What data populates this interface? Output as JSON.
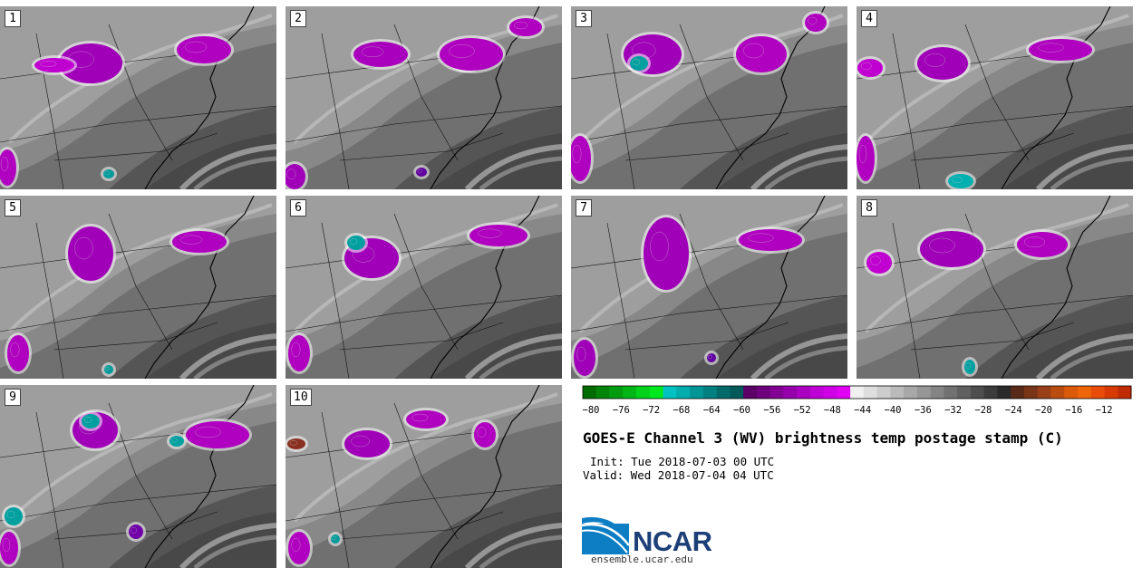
{
  "title": "GOES-E Channel 3 (WV) brightness temp postage stamp (C)",
  "init_label": "Init: Tue 2018-07-03 00 UTC",
  "valid_label": "Valid: Wed 2018-07-04 04 UTC",
  "logo": {
    "text": "NCAR",
    "website": "ensemble.ucar.edu"
  },
  "panels": [
    {
      "number": "1",
      "blobs": [
        [
          100,
          70,
          35,
          22,
          "#a000b8"
        ],
        [
          225,
          55,
          30,
          15,
          "#b000c0"
        ],
        [
          60,
          72,
          22,
          8,
          "#c000d0"
        ],
        [
          120,
          192,
          6,
          5,
          "#009a9a"
        ],
        [
          8,
          185,
          10,
          20,
          "#b000c0"
        ]
      ]
    },
    {
      "number": "2",
      "blobs": [
        [
          420,
          60,
          30,
          14,
          "#a800bc"
        ],
        [
          515,
          65,
          18,
          12,
          "#00a0a0"
        ],
        [
          520,
          60,
          35,
          18,
          "#b000c0"
        ],
        [
          580,
          30,
          18,
          10,
          "#b000c0"
        ],
        [
          325,
          195,
          12,
          14,
          "#a000b8"
        ],
        [
          465,
          190,
          6,
          5,
          "#6000a0"
        ]
      ]
    },
    {
      "number": "3",
      "blobs": [
        [
          720,
          60,
          32,
          22,
          "#a000b8"
        ],
        [
          840,
          60,
          28,
          20,
          "#b000c0"
        ],
        [
          705,
          70,
          10,
          8,
          "#00a0a0"
        ],
        [
          640,
          175,
          12,
          25,
          "#b000c0"
        ],
        [
          900,
          25,
          12,
          10,
          "#b000c0"
        ]
      ]
    },
    {
      "number": "4",
      "blobs": [
        [
          1040,
          70,
          28,
          18,
          "#a000b8"
        ],
        [
          1170,
          55,
          35,
          12,
          "#b000c0"
        ],
        [
          960,
          75,
          14,
          10,
          "#c000d0"
        ],
        [
          1060,
          200,
          14,
          8,
          "#00b0b0"
        ],
        [
          955,
          175,
          10,
          25,
          "#b000c0"
        ]
      ]
    },
    {
      "number": "5",
      "blobs": [
        [
          100,
          280,
          25,
          30,
          "#a000b8"
        ],
        [
          220,
          267,
          30,
          12,
          "#b000c0"
        ],
        [
          20,
          390,
          12,
          20,
          "#b000c0"
        ],
        [
          120,
          408,
          5,
          5,
          "#009a9a"
        ]
      ]
    },
    {
      "number": "6",
      "blobs": [
        [
          410,
          285,
          30,
          22,
          "#a000b8"
        ],
        [
          393,
          268,
          10,
          8,
          "#00a0a0"
        ],
        [
          550,
          260,
          32,
          12,
          "#b000c0"
        ],
        [
          330,
          390,
          12,
          20,
          "#b000c0"
        ]
      ]
    },
    {
      "number": "7",
      "blobs": [
        [
          735,
          280,
          25,
          40,
          "#a000b8"
        ],
        [
          850,
          265,
          35,
          12,
          "#b000c0"
        ],
        [
          645,
          395,
          12,
          20,
          "#a000b8"
        ],
        [
          785,
          395,
          5,
          5,
          "#6000a0"
        ]
      ]
    },
    {
      "number": "8",
      "blobs": [
        [
          1050,
          275,
          35,
          20,
          "#a000b8"
        ],
        [
          1150,
          270,
          28,
          14,
          "#b000c0"
        ],
        [
          970,
          290,
          14,
          12,
          "#c000d0"
        ],
        [
          1070,
          405,
          6,
          8,
          "#00a0a0"
        ]
      ]
    },
    {
      "number": "9",
      "blobs": [
        [
          105,
          475,
          25,
          20,
          "#a000b8"
        ],
        [
          100,
          465,
          10,
          8,
          "#00a0a0"
        ],
        [
          240,
          480,
          35,
          15,
          "#b000c0"
        ],
        [
          195,
          487,
          8,
          6,
          "#00a0a0"
        ],
        [
          15,
          570,
          10,
          10,
          "#00a0a0"
        ],
        [
          150,
          587,
          8,
          8,
          "#7000a8"
        ],
        [
          10,
          605,
          10,
          18,
          "#b000c0"
        ]
      ]
    },
    {
      "number": "10",
      "blobs": [
        [
          405,
          490,
          25,
          15,
          "#a000b8"
        ],
        [
          470,
          463,
          22,
          10,
          "#b000c0"
        ],
        [
          535,
          480,
          12,
          14,
          "#b000c0"
        ],
        [
          327,
          490,
          10,
          6,
          "#8a3020"
        ],
        [
          330,
          605,
          12,
          18,
          "#b000c0"
        ],
        [
          370,
          595,
          5,
          5,
          "#009a9a"
        ]
      ]
    }
  ],
  "colorbar": {
    "ticks": [
      "−80",
      "−76",
      "−72",
      "−68",
      "−64",
      "−60",
      "−56",
      "−52",
      "−48",
      "−44",
      "−40",
      "−36",
      "−32",
      "−28",
      "−24",
      "−20",
      "−16",
      "−12"
    ],
    "colors": [
      "#006b00",
      "#00850a",
      "#009c10",
      "#00b515",
      "#00d11a",
      "#00e81e",
      "#00c2c2",
      "#00acac",
      "#009696",
      "#008080",
      "#006a6a",
      "#005a5a",
      "#5a0066",
      "#6e007e",
      "#820094",
      "#9600aa",
      "#aa00c0",
      "#be00d4",
      "#d000e6",
      "#e000f2",
      "#f0f0f0",
      "#dedede",
      "#cccccc",
      "#bababa",
      "#a8a8a8",
      "#969696",
      "#848484",
      "#727272",
      "#606060",
      "#4e4e4e",
      "#3c3c3c",
      "#2a2a2a",
      "#5a2a18",
      "#7a3418",
      "#9a4018",
      "#ba4c10",
      "#da5a08",
      "#ee6408",
      "#e84c08",
      "#d83a04",
      "#c02c00"
    ]
  }
}
